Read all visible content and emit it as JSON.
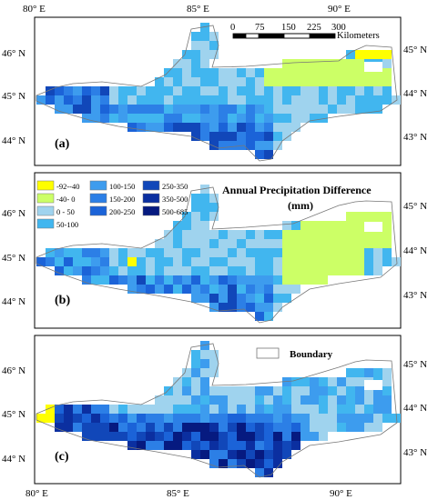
{
  "axes": {
    "top_lon_labels": [
      "80° E",
      "85° E",
      "90° E"
    ],
    "bottom_lon_labels": [
      "80° E",
      "85° E",
      "90° E"
    ],
    "left_lat_labels": [
      "46° N",
      "45° N",
      "44° N"
    ],
    "right_lat_labels": [
      "45° N",
      "44° N",
      "43° N"
    ]
  },
  "panels": [
    {
      "label": "(a)"
    },
    {
      "label": "(b)"
    },
    {
      "label": "(c)"
    }
  ],
  "scalebar": {
    "ticks": [
      "0",
      "75",
      "150",
      "225",
      "300"
    ],
    "unit": "Kilometers"
  },
  "legend": {
    "title_line1": "Annual Precipitation Difference",
    "title_line2": "(mm)",
    "classes": [
      {
        "label": "-92--40",
        "color": "#ffff00"
      },
      {
        "label": "-40- 0",
        "color": "#ccff66"
      },
      {
        "label": "0 - 50",
        "color": "#9fd3ee"
      },
      {
        "label": "50-100",
        "color": "#41b6ef"
      },
      {
        "label": "100-150",
        "color": "#3d9cee"
      },
      {
        "label": "150-200",
        "color": "#2c7fe6"
      },
      {
        "label": "200-250",
        "color": "#1b63d8"
      },
      {
        "label": "250-350",
        "color": "#1147b9"
      },
      {
        "label": "350-500",
        "color": "#0b2fa0"
      },
      {
        "label": "500-685",
        "color": "#061a80"
      }
    ]
  },
  "boundary_legend": {
    "label": "Boundary"
  }
}
